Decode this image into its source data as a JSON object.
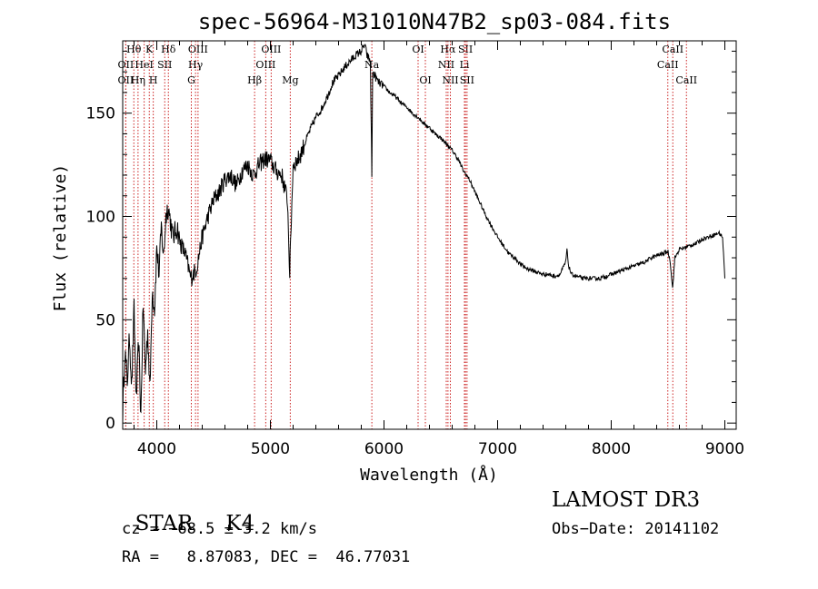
{
  "chart_data": {
    "type": "line",
    "title": "spec-56964-M31010N47B2_sp03-084.fits",
    "xlabel": "Wavelength (Å)",
    "ylabel": "Flux (relative)",
    "xlim": [
      3700,
      9100
    ],
    "ylim": [
      -3,
      185
    ],
    "xticks": [
      4000,
      5000,
      6000,
      7000,
      8000,
      9000
    ],
    "yticks": [
      0,
      50,
      100,
      150
    ],
    "grid": false,
    "line_color": "#000000",
    "marker_color": "#cc2222",
    "line_markers": [
      {
        "label": "Hθ",
        "x": 3798,
        "row": 1
      },
      {
        "label": "OII",
        "x": 3727,
        "row": 2
      },
      {
        "label": "OII",
        "x": 3727,
        "row": 3
      },
      {
        "label": "K",
        "x": 3934,
        "row": 1
      },
      {
        "label": "HeI",
        "x": 3889,
        "row": 2
      },
      {
        "label": "Hη",
        "x": 3835,
        "row": 3
      },
      {
        "label": "Hδ",
        "x": 4102,
        "row": 1
      },
      {
        "label": "SII",
        "x": 4070,
        "row": 2
      },
      {
        "label": "H",
        "x": 3969,
        "row": 3
      },
      {
        "label": "OIII",
        "x": 4363,
        "row": 1
      },
      {
        "label": "Hγ",
        "x": 4341,
        "row": 2
      },
      {
        "label": "G",
        "x": 4304,
        "row": 3
      },
      {
        "label": "Hβ",
        "x": 4861,
        "row": 3
      },
      {
        "label": "OIII",
        "x": 5007,
        "row": 1
      },
      {
        "label": "OIII",
        "x": 4959,
        "row": 2
      },
      {
        "label": "Mg",
        "x": 5175,
        "row": 3
      },
      {
        "label": "Na",
        "x": 5893,
        "row": 2
      },
      {
        "label": "OI",
        "x": 6300,
        "row": 1
      },
      {
        "label": "OI",
        "x": 6364,
        "row": 3
      },
      {
        "label": "Hα",
        "x": 6563,
        "row": 1
      },
      {
        "label": "NII",
        "x": 6548,
        "row": 2
      },
      {
        "label": "NII",
        "x": 6584,
        "row": 3
      },
      {
        "label": "SII",
        "x": 6717,
        "row": 1
      },
      {
        "label": "Li",
        "x": 6708,
        "row": 2
      },
      {
        "label": "SII",
        "x": 6731,
        "row": 3
      },
      {
        "label": "CaII",
        "x": 8542,
        "row": 1
      },
      {
        "label": "CaII",
        "x": 8498,
        "row": 2
      },
      {
        "label": "CaII",
        "x": 8662,
        "row": 3
      }
    ],
    "series": [
      {
        "x": [
          3700,
          3720,
          3740,
          3760,
          3780,
          3800,
          3820,
          3840,
          3860,
          3880,
          3900,
          3920,
          3940,
          3960,
          3980,
          4000,
          4020,
          4040,
          4060,
          4080,
          4100,
          4120,
          4140,
          4160,
          4180,
          4200,
          4250,
          4300,
          4350,
          4400,
          4450,
          4500,
          4550,
          4600,
          4650,
          4700,
          4750,
          4800,
          4850,
          4900,
          4950,
          5000,
          5050,
          5100,
          5150,
          5170,
          5185,
          5200,
          5250,
          5300,
          5350,
          5400,
          5450,
          5500,
          5550,
          5600,
          5650,
          5700,
          5750,
          5800,
          5830,
          5850,
          5880,
          5893,
          5900,
          5920,
          5950,
          6000,
          6050,
          6100,
          6150,
          6200,
          6250,
          6300,
          6350,
          6400,
          6450,
          6500,
          6550,
          6600,
          6650,
          6700,
          6750,
          6800,
          6850,
          6900,
          6950,
          7000,
          7050,
          7100,
          7150,
          7200,
          7250,
          7300,
          7350,
          7400,
          7450,
          7500,
          7550,
          7600,
          7610,
          7625,
          7650,
          7700,
          7750,
          7800,
          7850,
          7900,
          7950,
          8000,
          8050,
          8100,
          8150,
          8200,
          8250,
          8300,
          8350,
          8400,
          8450,
          8500,
          8520,
          8540,
          8560,
          8600,
          8650,
          8700,
          8750,
          8800,
          8850,
          8900,
          8950,
          8980,
          9000
        ],
        "y": [
          5,
          35,
          20,
          42,
          18,
          55,
          10,
          40,
          3,
          58,
          25,
          45,
          15,
          65,
          55,
          85,
          72,
          95,
          80,
          100,
          105,
          98,
          90,
          92,
          95,
          88,
          82,
          70,
          75,
          90,
          100,
          108,
          112,
          118,
          120,
          115,
          122,
          125,
          120,
          125,
          128,
          127,
          122,
          120,
          108,
          72,
          100,
          125,
          128,
          135,
          142,
          148,
          152,
          158,
          165,
          168,
          172,
          175,
          178,
          180,
          183,
          178,
          175,
          120,
          170,
          168,
          165,
          163,
          160,
          158,
          155,
          153,
          150,
          148,
          145,
          143,
          140,
          138,
          135,
          132,
          128,
          122,
          118,
          112,
          106,
          100,
          95,
          90,
          86,
          82,
          80,
          77,
          75,
          74,
          73,
          72,
          72,
          71,
          72,
          78,
          84,
          76,
          72,
          71,
          70,
          70,
          70,
          70,
          71,
          72,
          73,
          74,
          75,
          76,
          77,
          78,
          80,
          81,
          82,
          83,
          78,
          65,
          80,
          84,
          85,
          86,
          87,
          89,
          90,
          91,
          92,
          90,
          70
        ]
      }
    ]
  },
  "footer": {
    "class_label": "STAR",
    "subclass": "K4",
    "survey": "LAMOST DR3",
    "cz": "cz = −68.5 ± 3.2 km/s",
    "obs_date": "Obs−Date: 20141102",
    "coords": "RA =   8.87083, DEC =  46.77031"
  }
}
